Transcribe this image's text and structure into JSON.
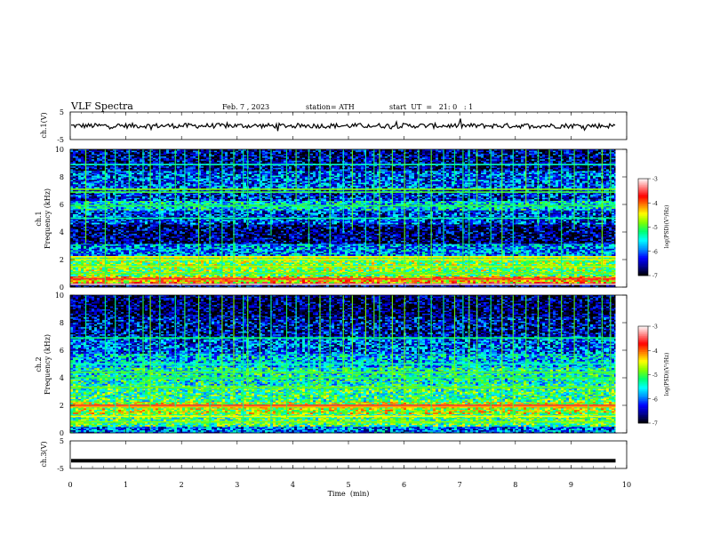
{
  "header": {
    "title": "VLF  Spectra",
    "date": "Feb. 7  , 2023",
    "station": "station= ATH",
    "start_ut": "start  UT  =   21: 0   : 1"
  },
  "chart_data": [
    {
      "type": "line",
      "panel": "ch1-waveform",
      "ylabel": "ch.1(V)",
      "ylim": [
        -5,
        5
      ],
      "y_ticks": [
        "5",
        "-5"
      ],
      "xlim": [
        0,
        10
      ],
      "data_extent_min": 9.8,
      "baseline_value": 0,
      "line_color": "#000000"
    },
    {
      "type": "heatmap",
      "panel": "ch1-spectrogram",
      "ylabel": "ch.1",
      "ylabel2": "Frequency  (kHz)",
      "ylim": [
        0,
        10
      ],
      "y_ticks": [
        "0",
        "2",
        "4",
        "6",
        "8",
        "10"
      ],
      "xlim": [
        0,
        10
      ],
      "data_extent_min": 9.8,
      "colorbar": {
        "label": "log(PSD)(V²/Hz)",
        "range": [
          -7,
          -3
        ],
        "ticks": [
          "-3",
          "-4",
          "-5",
          "-6",
          "-7"
        ],
        "colors": [
          "#000000",
          "#00008b",
          "#0000ff",
          "#0090ff",
          "#00ffff",
          "#00ff70",
          "#7fff00",
          "#ffff00",
          "#ff8000",
          "#ff0000",
          "#ff8080",
          "#ffffff"
        ]
      },
      "bands_khz": [
        {
          "low": 0.0,
          "high": 0.3,
          "level": -6.6
        },
        {
          "low": 0.3,
          "high": 0.8,
          "level": -4.3
        },
        {
          "low": 0.8,
          "high": 1.2,
          "level": -5.0
        },
        {
          "low": 1.2,
          "high": 2.3,
          "level": -4.9
        },
        {
          "low": 2.3,
          "high": 3.2,
          "level": -5.9
        },
        {
          "low": 3.2,
          "high": 4.6,
          "level": -6.7
        },
        {
          "low": 4.6,
          "high": 5.6,
          "level": -6.2
        },
        {
          "low": 5.6,
          "high": 6.3,
          "level": -5.6
        },
        {
          "low": 6.3,
          "high": 7.2,
          "level": -6.3
        },
        {
          "low": 7.2,
          "high": 8.5,
          "level": -6.1
        },
        {
          "low": 8.5,
          "high": 10.0,
          "level": -6.6
        }
      ],
      "lines_khz": [
        {
          "f": 0.2,
          "level": -3.2
        },
        {
          "f": 0.6,
          "level": -3.6
        },
        {
          "f": 2.2,
          "level": -4.4
        },
        {
          "f": 2.0,
          "level": -4.6
        },
        {
          "f": 1.5,
          "level": -4.7
        },
        {
          "f": 1.0,
          "level": -4.9
        },
        {
          "f": 5.0,
          "level": -5.3
        },
        {
          "f": 5.9,
          "level": -5.1
        },
        {
          "f": 6.9,
          "level": -5.0
        },
        {
          "f": 7.1,
          "level": -4.8
        },
        {
          "f": 8.9,
          "level": -5.4
        }
      ],
      "transients_min": [
        0.27,
        0.62,
        0.8,
        1.05,
        1.3,
        1.43,
        1.6,
        1.88,
        2.05,
        2.3,
        2.5,
        2.72,
        2.93,
        3.1,
        3.18,
        3.4,
        3.6,
        3.88,
        4.05,
        4.28,
        4.48,
        4.66,
        4.9,
        5.06,
        5.3,
        5.45,
        5.55,
        5.78,
        6.0,
        6.25,
        6.48,
        6.7,
        6.9,
        7.05,
        7.16,
        7.3,
        7.55,
        7.75,
        7.95,
        8.18,
        8.4,
        8.6,
        8.82,
        9.05,
        9.3,
        9.55,
        9.7
      ]
    },
    {
      "type": "heatmap",
      "panel": "ch2-spectrogram",
      "ylabel": "ch.2",
      "ylabel2": "Frequency  (kHz)",
      "ylim": [
        0,
        10
      ],
      "y_ticks": [
        "0",
        "2",
        "4",
        "6",
        "8",
        "10"
      ],
      "xlim": [
        0,
        10
      ],
      "data_extent_min": 9.8,
      "colorbar": {
        "label": "log(PSD)(V²/Hz)",
        "range": [
          -7,
          -3
        ],
        "ticks": [
          "-3",
          "-4",
          "-5",
          "-6",
          "-7"
        ],
        "colors": [
          "#000000",
          "#00008b",
          "#0000ff",
          "#0090ff",
          "#00ffff",
          "#00ff70",
          "#7fff00",
          "#ffff00",
          "#ff8000",
          "#ff0000",
          "#ff8080",
          "#ffffff"
        ]
      },
      "bands_khz": [
        {
          "low": 0.0,
          "high": 0.5,
          "level": -6.0
        },
        {
          "low": 0.5,
          "high": 1.4,
          "level": -5.1
        },
        {
          "low": 1.4,
          "high": 2.3,
          "level": -4.7
        },
        {
          "low": 2.3,
          "high": 3.5,
          "level": -5.2
        },
        {
          "low": 3.5,
          "high": 4.8,
          "level": -5.4
        },
        {
          "low": 4.8,
          "high": 5.8,
          "level": -5.7
        },
        {
          "low": 5.8,
          "high": 7.0,
          "level": -6.1
        },
        {
          "low": 7.0,
          "high": 8.5,
          "level": -6.5
        },
        {
          "low": 8.5,
          "high": 10.0,
          "level": -6.8
        }
      ],
      "lines_khz": [
        {
          "f": 2.0,
          "level": -3.6
        },
        {
          "f": 1.9,
          "level": -4.2
        },
        {
          "f": 1.2,
          "level": -4.5
        },
        {
          "f": 0.8,
          "level": -4.8
        },
        {
          "f": 3.3,
          "level": -4.9
        },
        {
          "f": 4.0,
          "level": -5.1
        },
        {
          "f": 4.4,
          "level": -5.0
        },
        {
          "f": 5.0,
          "level": -5.4
        },
        {
          "f": 6.9,
          "level": -5.2
        }
      ],
      "transients_min": [
        0.27,
        0.62,
        0.8,
        1.05,
        1.3,
        1.43,
        1.6,
        1.88,
        2.05,
        2.3,
        2.5,
        2.72,
        2.93,
        3.1,
        3.18,
        3.4,
        3.6,
        3.88,
        4.05,
        4.28,
        4.48,
        4.66,
        4.9,
        5.06,
        5.3,
        5.45,
        5.55,
        5.78,
        6.0,
        6.25,
        6.48,
        6.7,
        6.9,
        7.05,
        7.16,
        7.3,
        7.55,
        7.75,
        7.95,
        8.18,
        8.4,
        8.6,
        8.82,
        9.05,
        9.3,
        9.55,
        9.7
      ]
    },
    {
      "type": "line",
      "panel": "ch3-waveform",
      "ylabel": "ch.3(V)",
      "ylim": [
        -5,
        5
      ],
      "y_ticks": [
        "5",
        "-5"
      ],
      "xlim": [
        0,
        10
      ],
      "data_extent_min": 9.8,
      "baseline_value": -2.2,
      "line_color": "#000000"
    }
  ],
  "x_axis": {
    "label": "Time  (min)",
    "range": [
      0,
      10
    ],
    "ticks": [
      "0",
      "1",
      "2",
      "3",
      "4",
      "5",
      "6",
      "7",
      "8",
      "9",
      "10"
    ]
  }
}
